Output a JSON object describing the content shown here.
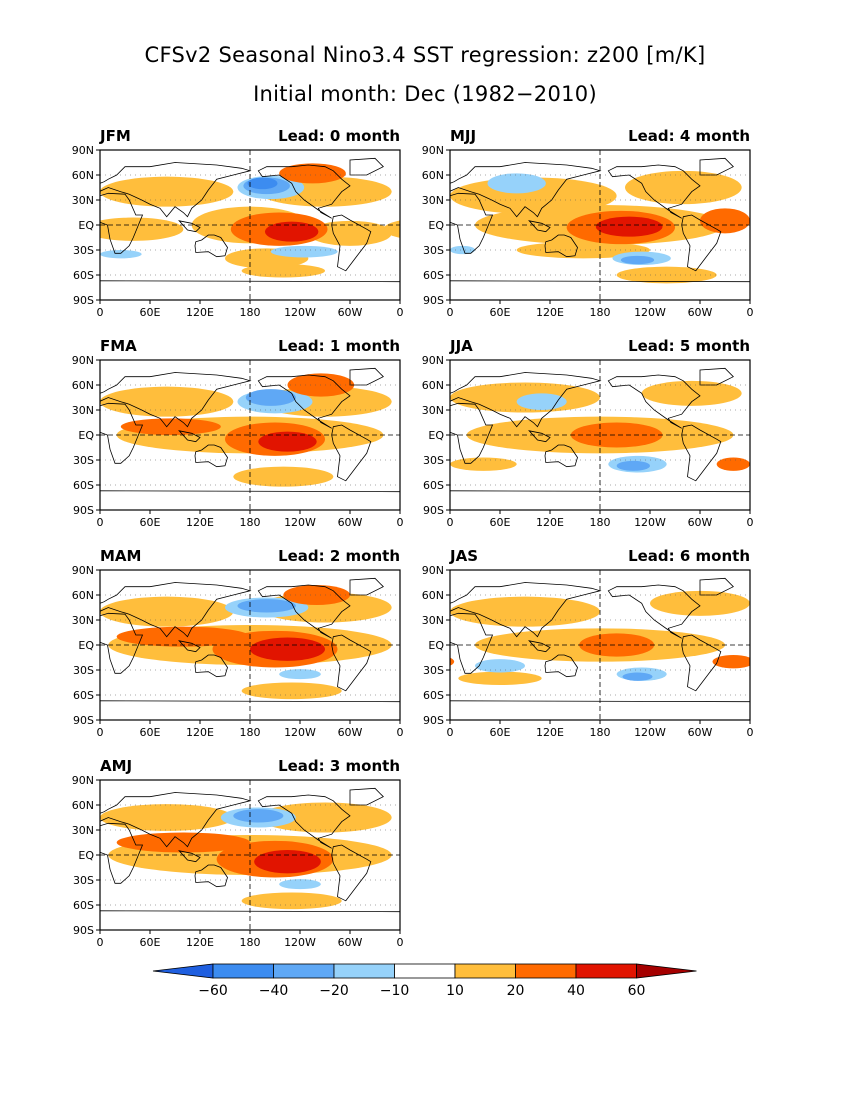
{
  "title": "CFSv2 Seasonal Nino3.4 SST regression: z200 [m/K]",
  "subtitle": "Initial month: Dec (1982−2010)",
  "lat_labels": [
    "90N",
    "60N",
    "30N",
    "EQ",
    "30S",
    "60S",
    "90S"
  ],
  "lon_labels": [
    "0",
    "60E",
    "120E",
    "180",
    "120W",
    "60W",
    "0"
  ],
  "panels": [
    {
      "season": "JFM",
      "lead": "Lead: 0 month"
    },
    {
      "season": "MJJ",
      "lead": "Lead: 4 month"
    },
    {
      "season": "FMA",
      "lead": "Lead: 1 month"
    },
    {
      "season": "JJA",
      "lead": "Lead: 5 month"
    },
    {
      "season": "MAM",
      "lead": "Lead: 2 month"
    },
    {
      "season": "JAS",
      "lead": "Lead: 6 month"
    },
    {
      "season": "AMJ",
      "lead": "Lead: 3 month"
    }
  ],
  "colorbar": {
    "tick_labels": [
      "−60",
      "−40",
      "−20",
      "−10",
      "10",
      "20",
      "40",
      "60"
    ],
    "colors": [
      "#1f5fe0",
      "#3c8cf0",
      "#5fa8f5",
      "#96d2fa",
      "#ffffff",
      "#ffbe3c",
      "#ff6a00",
      "#e11400",
      "#a50000"
    ]
  }
}
